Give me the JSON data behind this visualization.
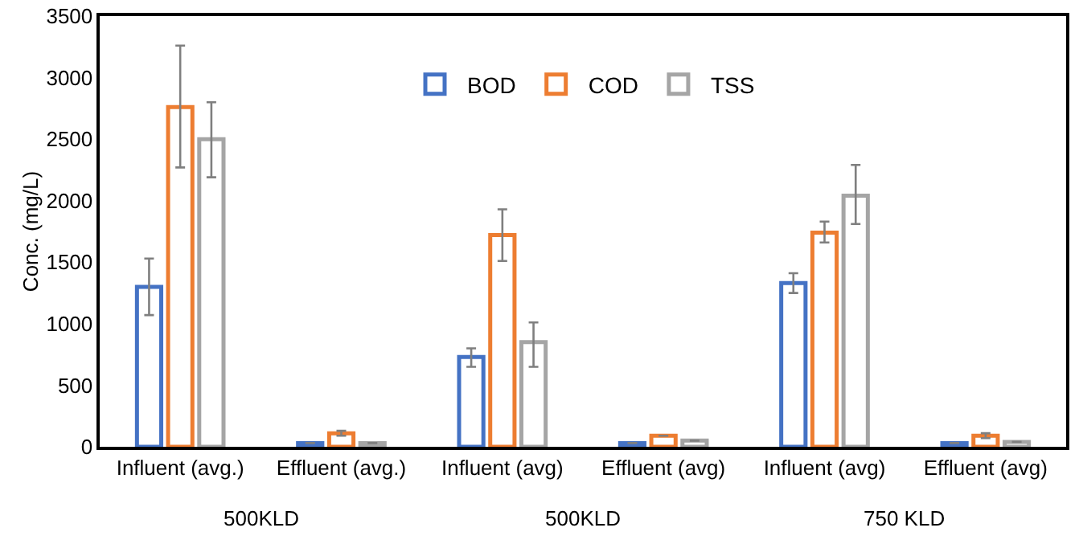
{
  "chart_data": {
    "type": "bar",
    "ylabel": "Conc. (mg/L)",
    "categories": [
      "Influent (avg.)",
      "Effluent (avg.)",
      "Influent (avg)",
      "Effluent (avg)",
      "Influent (avg)",
      "Effluent (avg)"
    ],
    "series": [
      {
        "name": "BOD",
        "color": "#4472c4",
        "values": [
          1300,
          30,
          730,
          30,
          1330,
          30
        ],
        "errors": [
          [
            1070,
            1530
          ],
          null,
          [
            650,
            800
          ],
          null,
          [
            1250,
            1410
          ],
          null
        ]
      },
      {
        "name": "COD",
        "color": "#ed7d31",
        "values": [
          2760,
          110,
          1720,
          90,
          1740,
          90
        ],
        "errors": [
          [
            2270,
            3260
          ],
          [
            90,
            130
          ],
          [
            1510,
            1930
          ],
          null,
          [
            1660,
            1830
          ],
          [
            70,
            110
          ]
        ]
      },
      {
        "name": "TSS",
        "color": "#a5a5a5",
        "values": [
          2500,
          30,
          850,
          50,
          2040,
          40
        ],
        "errors": [
          [
            2190,
            2800
          ],
          null,
          [
            650,
            1010
          ],
          null,
          [
            1810,
            2290
          ],
          null
        ]
      }
    ],
    "annotations": [
      "500KLD",
      "500KLD",
      "750 KLD"
    ],
    "ylim": [
      0,
      3500
    ],
    "yticks": [
      0,
      500,
      1000,
      1500,
      2000,
      2500,
      3000,
      3500
    ],
    "grid": false,
    "legend": "top"
  }
}
